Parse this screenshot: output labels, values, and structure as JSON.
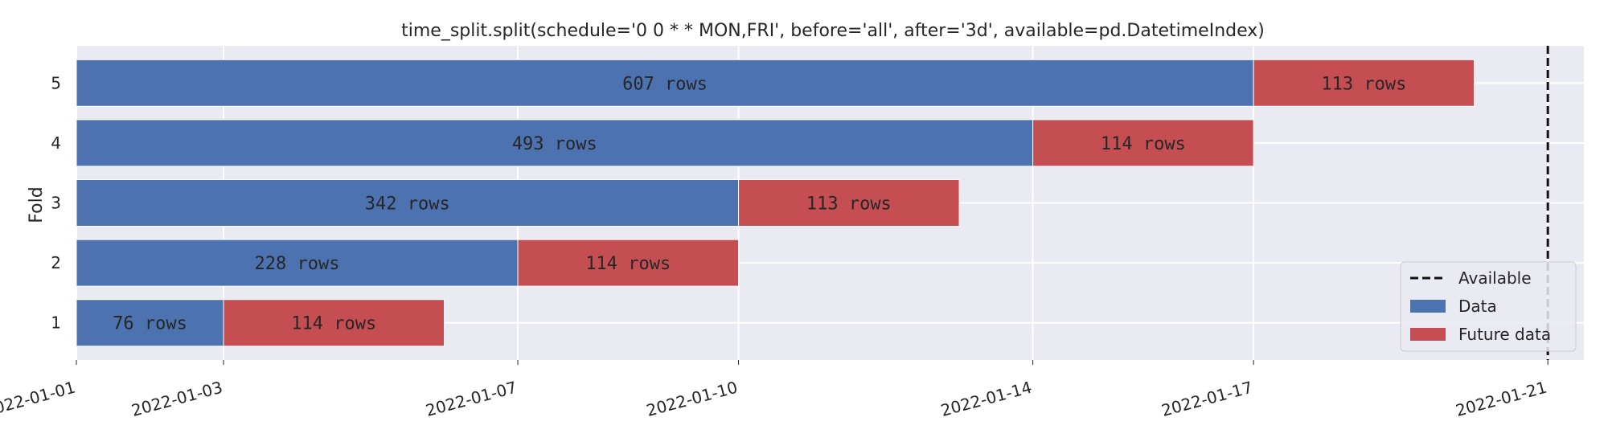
{
  "chart_data": {
    "type": "bar",
    "orientation": "horizontal-stacked-timeline",
    "title": "time_split.split(schedule='0 0 * * MON,FRI', before='all', after='3d', available=pd.DatetimeIndex)",
    "ylabel": "Fold",
    "xlabel": "",
    "x_ticks": [
      "2022-01-01",
      "2022-01-03",
      "2022-01-07",
      "2022-01-10",
      "2022-01-14",
      "2022-01-17",
      "2022-01-21"
    ],
    "x_range": [
      "2022-01-01",
      "2022-01-21"
    ],
    "y_ticks": [
      "1",
      "2",
      "3",
      "4",
      "5"
    ],
    "grid": true,
    "legend_position": "lower-right",
    "colors": {
      "data": "#4c72b0",
      "future": "#c44e52",
      "available": "#111111",
      "background": "#eaeaf2"
    },
    "available_line": {
      "label": "Available",
      "date": "2022-01-21"
    },
    "series": [
      {
        "name": "Data",
        "color": "#4c72b0"
      },
      {
        "name": "Future data",
        "color": "#c44e52"
      }
    ],
    "folds": [
      {
        "fold": "1",
        "data_start": "2022-01-01",
        "split": "2022-01-03",
        "future_end": "2022-01-06",
        "data_label": "76 rows",
        "future_label": "114 rows"
      },
      {
        "fold": "2",
        "data_start": "2022-01-01",
        "split": "2022-01-07",
        "future_end": "2022-01-10",
        "data_label": "228 rows",
        "future_label": "114 rows"
      },
      {
        "fold": "3",
        "data_start": "2022-01-01",
        "split": "2022-01-10",
        "future_end": "2022-01-13",
        "data_label": "342 rows",
        "future_label": "113 rows"
      },
      {
        "fold": "4",
        "data_start": "2022-01-01",
        "split": "2022-01-14",
        "future_end": "2022-01-17",
        "data_label": "493 rows",
        "future_label": "114 rows"
      },
      {
        "fold": "5",
        "data_start": "2022-01-01",
        "split": "2022-01-17",
        "future_end": "2022-01-20",
        "data_label": "607 rows",
        "future_label": "113 rows"
      }
    ],
    "legend": [
      {
        "label": "Available",
        "kind": "dashed-line"
      },
      {
        "label": "Data",
        "kind": "patch",
        "color": "#4c72b0"
      },
      {
        "label": "Future data",
        "kind": "patch",
        "color": "#c44e52"
      }
    ]
  }
}
